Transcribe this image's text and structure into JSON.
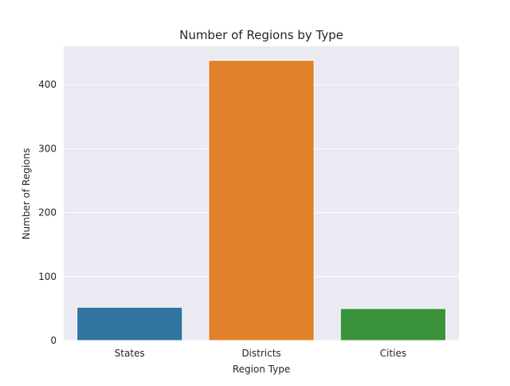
{
  "chart_data": {
    "type": "bar",
    "title": "Number of Regions by Type",
    "xlabel": "Region Type",
    "ylabel": "Number of Regions",
    "categories": [
      "States",
      "Districts",
      "Cities"
    ],
    "values": [
      52,
      438,
      50
    ],
    "colors": [
      "#3274a1",
      "#e1812c",
      "#3a923a"
    ],
    "ylim": [
      0,
      460
    ],
    "yticks": [
      0,
      100,
      200,
      300,
      400
    ],
    "grid": true,
    "background": "#eaeaf2"
  }
}
